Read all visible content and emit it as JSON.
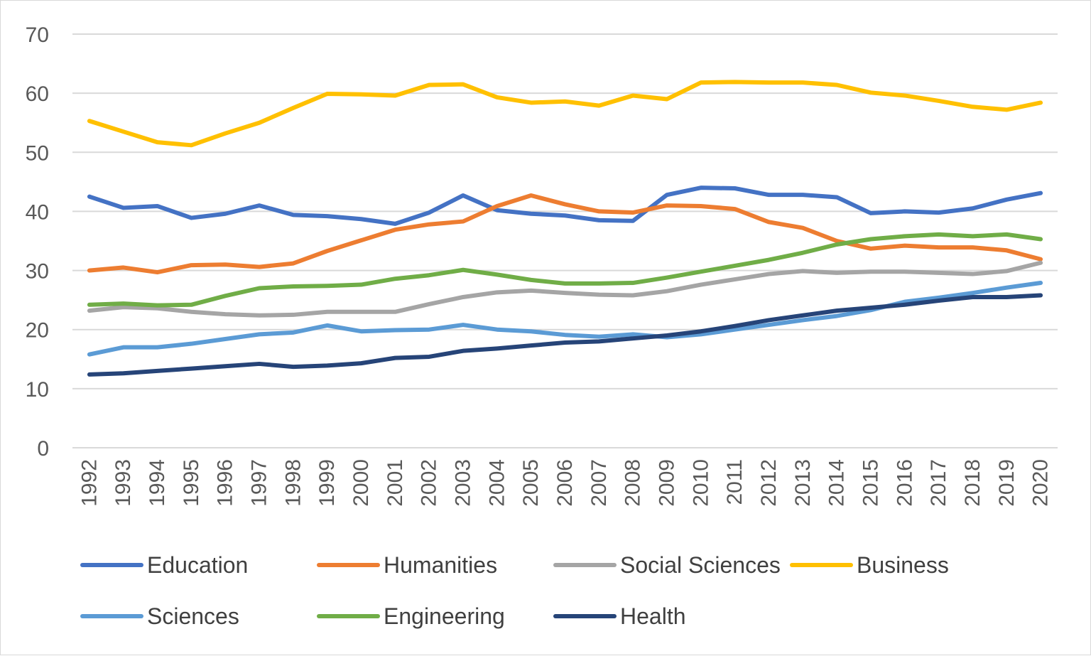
{
  "chart_data": {
    "type": "line",
    "title": "",
    "xlabel": "",
    "ylabel": "",
    "ylim": [
      0,
      70
    ],
    "yticks": [
      "0",
      "10",
      "20",
      "30",
      "40",
      "50",
      "60",
      "70"
    ],
    "grid": "horizontal",
    "legend_position": "bottom",
    "categories": [
      "1992",
      "1993",
      "1994",
      "1995",
      "1996",
      "1997",
      "1998",
      "1999",
      "2000",
      "2001",
      "2002",
      "2003",
      "2004",
      "2005",
      "2006",
      "2007",
      "2008",
      "2009",
      "2010",
      "2011",
      "2012",
      "2013",
      "2014",
      "2015",
      "2016",
      "2017",
      "2018",
      "2019",
      "2020"
    ],
    "series": [
      {
        "name": "Education",
        "color": "#4472C4",
        "values": [
          42.5,
          40.6,
          40.9,
          38.9,
          39.6,
          41.0,
          39.4,
          39.2,
          38.7,
          37.9,
          39.8,
          42.7,
          40.2,
          39.6,
          39.3,
          38.5,
          38.4,
          42.8,
          44.0,
          43.9,
          42.8,
          42.8,
          42.4,
          39.7,
          40.0,
          39.8,
          40.5,
          42.0,
          43.1
        ]
      },
      {
        "name": "Humanities",
        "color": "#ED7D31",
        "values": [
          30.0,
          30.5,
          29.7,
          30.9,
          31.0,
          30.6,
          31.2,
          33.3,
          35.1,
          36.9,
          37.8,
          38.3,
          40.9,
          42.7,
          41.2,
          40.0,
          39.8,
          41.0,
          40.9,
          40.4,
          38.2,
          37.2,
          35.0,
          33.7,
          34.2,
          33.9,
          33.9,
          33.4,
          31.9
        ]
      },
      {
        "name": "Social Sciences",
        "color": "#A5A5A5",
        "values": [
          23.2,
          23.8,
          23.6,
          23.0,
          22.6,
          22.4,
          22.5,
          23.0,
          23.0,
          23.0,
          24.3,
          25.5,
          26.3,
          26.6,
          26.2,
          25.9,
          25.8,
          26.5,
          27.6,
          28.5,
          29.4,
          29.9,
          29.6,
          29.8,
          29.8,
          29.6,
          29.4,
          29.9,
          31.3
        ]
      },
      {
        "name": "Business",
        "color": "#FFC000",
        "values": [
          55.3,
          53.5,
          51.7,
          51.2,
          53.2,
          55.0,
          57.5,
          59.9,
          59.8,
          59.6,
          61.4,
          61.5,
          59.3,
          58.4,
          58.6,
          57.9,
          59.6,
          59.0,
          61.8,
          61.9,
          61.8,
          61.8,
          61.4,
          60.1,
          59.6,
          58.7,
          57.7,
          57.2,
          58.4
        ]
      },
      {
        "name": "Sciences",
        "color": "#5B9BD5",
        "values": [
          15.8,
          17.0,
          17.0,
          17.6,
          18.4,
          19.2,
          19.5,
          20.7,
          19.7,
          19.9,
          20.0,
          20.8,
          20.0,
          19.7,
          19.1,
          18.8,
          19.2,
          18.7,
          19.2,
          20.0,
          20.8,
          21.6,
          22.3,
          23.3,
          24.7,
          25.4,
          26.2,
          27.1,
          27.9
        ]
      },
      {
        "name": "Engineering",
        "color": "#70AD47",
        "values": [
          24.2,
          24.4,
          24.1,
          24.2,
          25.7,
          27.0,
          27.3,
          27.4,
          27.6,
          28.6,
          29.2,
          30.1,
          29.3,
          28.4,
          27.8,
          27.8,
          27.9,
          28.8,
          29.8,
          30.8,
          31.8,
          33.0,
          34.4,
          35.3,
          35.8,
          36.1,
          35.8,
          36.1,
          35.3
        ]
      },
      {
        "name": "Health",
        "color": "#264478",
        "values": [
          12.4,
          12.6,
          13.0,
          13.4,
          13.8,
          14.2,
          13.7,
          13.9,
          14.3,
          15.2,
          15.4,
          16.4,
          16.8,
          17.3,
          17.8,
          18.0,
          18.5,
          19.0,
          19.7,
          20.6,
          21.6,
          22.4,
          23.2,
          23.7,
          24.2,
          24.9,
          25.5,
          25.5,
          25.8
        ]
      }
    ]
  }
}
